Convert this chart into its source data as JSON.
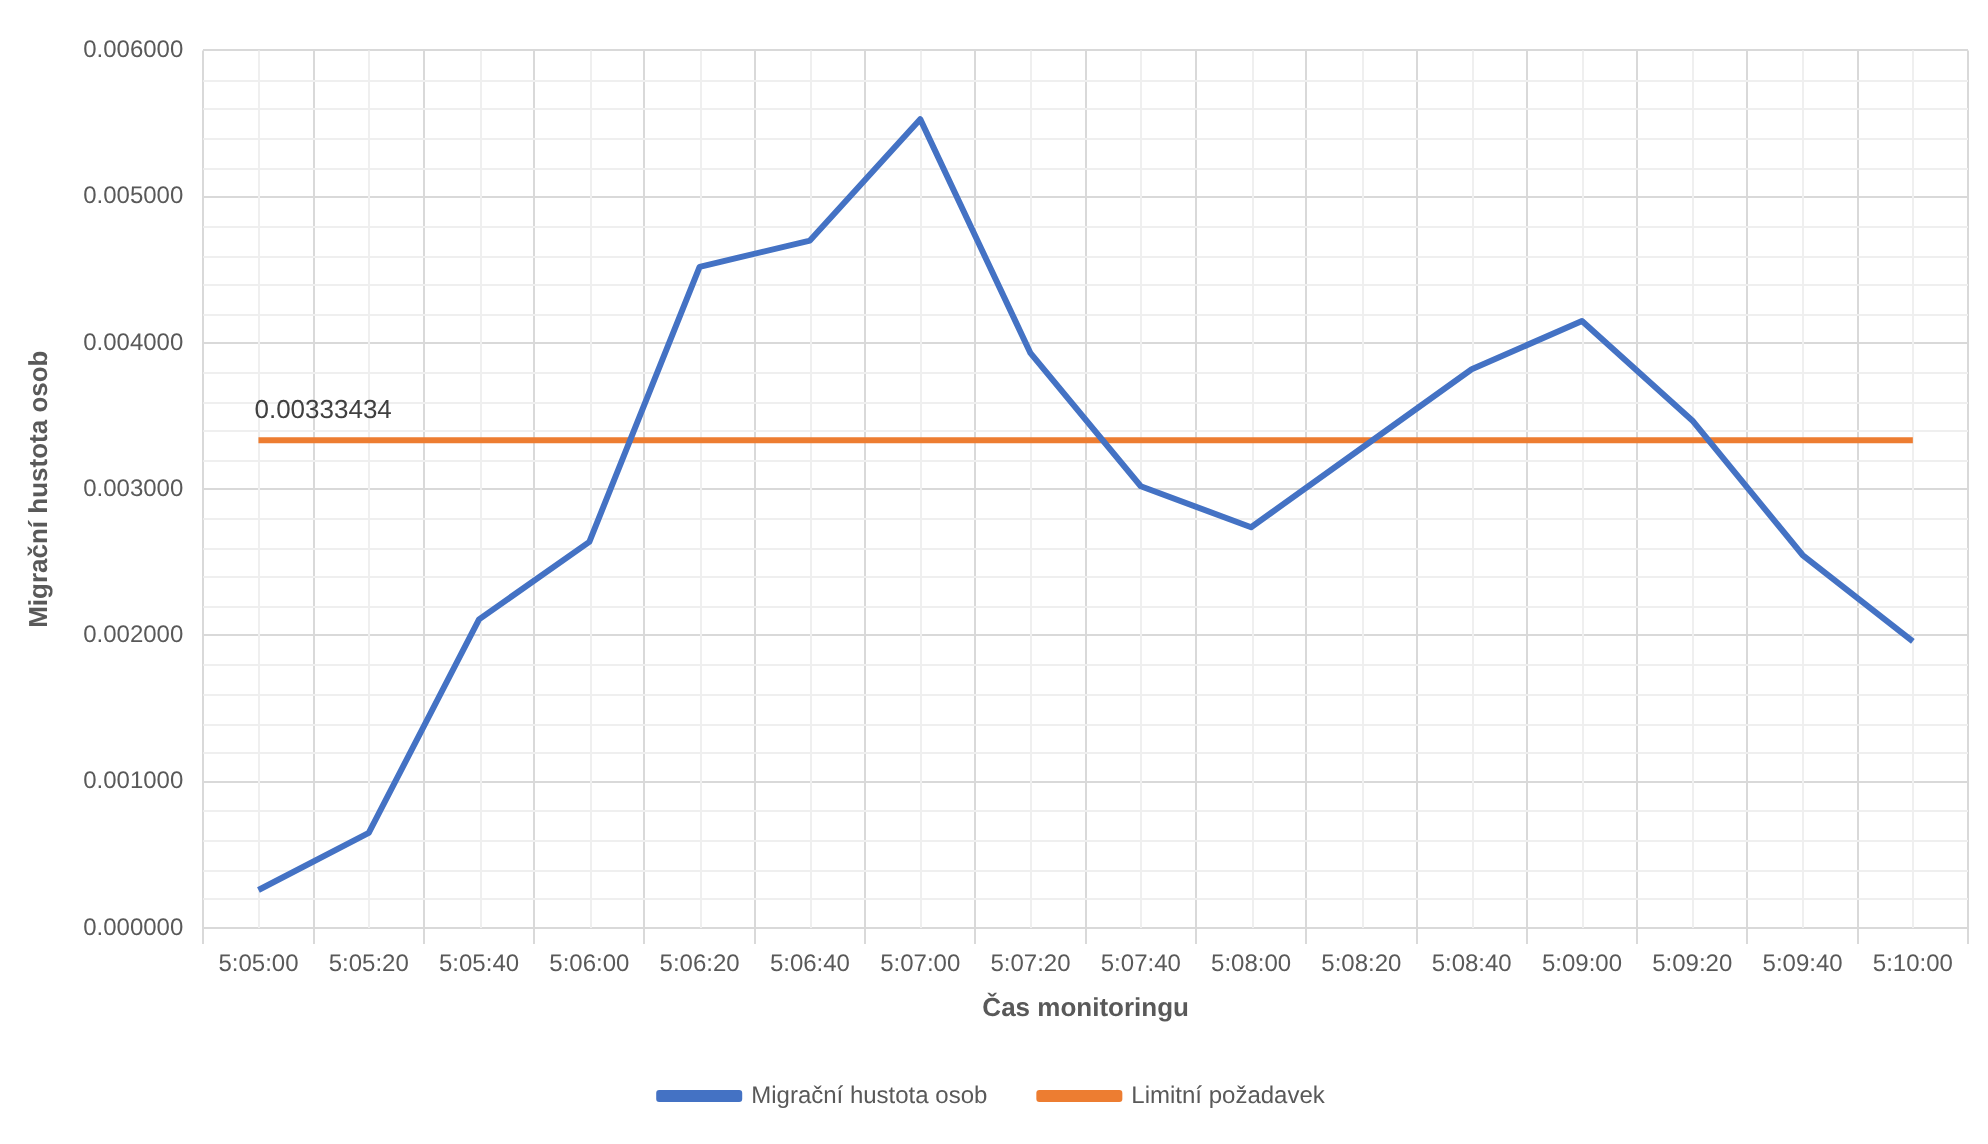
{
  "chart_data": {
    "type": "line",
    "xlabel": "Čas monitoringu",
    "ylabel": "Migrační hustota osob",
    "categories": [
      "5:05:00",
      "5:05:20",
      "5:05:40",
      "5:06:00",
      "5:06:20",
      "5:06:40",
      "5:07:00",
      "5:07:20",
      "5:07:40",
      "5:08:00",
      "5:08:20",
      "5:08:40",
      "5:09:00",
      "5:09:20",
      "5:09:40",
      "5:10:00"
    ],
    "series": [
      {
        "name": "Migrační hustota osob",
        "color": "#4472c4",
        "values": [
          0.00026,
          0.00065,
          0.00211,
          0.00264,
          0.00452,
          0.0047,
          0.00553,
          0.00393,
          0.00302,
          0.00274,
          0.00328,
          0.00382,
          0.00415,
          0.00347,
          0.00255,
          0.00196
        ]
      },
      {
        "name": "Limitní požadavek",
        "color": "#ed7d31",
        "values": [
          0.00333434,
          0.00333434,
          0.00333434,
          0.00333434,
          0.00333434,
          0.00333434,
          0.00333434,
          0.00333434,
          0.00333434,
          0.00333434,
          0.00333434,
          0.00333434,
          0.00333434,
          0.00333434,
          0.00333434,
          0.00333434
        ],
        "value_labels": [
          "0.00333434",
          null,
          null,
          null,
          null,
          null,
          null,
          null,
          null,
          null,
          null,
          null,
          null,
          null,
          null,
          null
        ]
      }
    ],
    "ylim": [
      0,
      0.006
    ],
    "yticks": [
      {
        "value": 0,
        "label": "0.000000"
      },
      {
        "value": 0.001,
        "label": "0.001000"
      },
      {
        "value": 0.002,
        "label": "0.002000"
      },
      {
        "value": 0.003,
        "label": "0.003000"
      },
      {
        "value": 0.004,
        "label": "0.004000"
      },
      {
        "value": 0.005,
        "label": "0.005000"
      },
      {
        "value": 0.006,
        "label": "0.006000"
      }
    ],
    "grid": true,
    "legend": "bottom",
    "marker": "none",
    "line_style": "solid"
  }
}
